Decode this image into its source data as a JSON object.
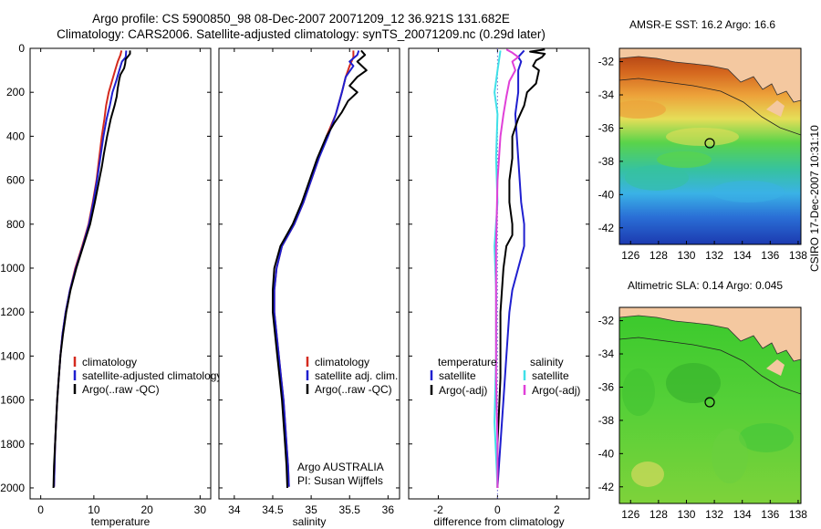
{
  "titles": {
    "line1": "Argo profile: CS 5900850_98 08-Dec-2007 20071209_12 36.921S 131.682E",
    "line2": "Climatology: CARS2006. Satellite-adjusted climatology: synTS_20071209.nc (0.29d later)"
  },
  "colors": {
    "climatology": "#d42a1e",
    "satellite": "#1f1fcf",
    "argo": "#000000",
    "salinity_satellite": "#3fe0e8",
    "salinity_argo": "#e040d8"
  },
  "chart_data": [
    {
      "type": "line",
      "xlabel": "temperature",
      "ylabel": "",
      "xlim": [
        -2,
        32
      ],
      "ylim": [
        2050,
        0
      ],
      "y_reversed": true,
      "xticks": [
        0,
        10,
        20,
        30
      ],
      "yticks": [
        0,
        200,
        400,
        600,
        800,
        1000,
        1200,
        1400,
        1600,
        1800,
        2000
      ],
      "legend": [
        "climatology",
        "satellite-adjusted climatology",
        "Argo(..raw -QC)"
      ],
      "series": [
        {
          "name": "climatology",
          "color": "#d42a1e",
          "points": [
            [
              15.2,
              10
            ],
            [
              15.0,
              30
            ],
            [
              14.5,
              60
            ],
            [
              14.0,
              100
            ],
            [
              13.4,
              150
            ],
            [
              12.8,
              200
            ],
            [
              12.3,
              260
            ],
            [
              12.0,
              320
            ],
            [
              11.5,
              400
            ],
            [
              11.0,
              500
            ],
            [
              10.5,
              600
            ],
            [
              9.8,
              700
            ],
            [
              9.0,
              800
            ],
            [
              7.8,
              900
            ],
            [
              6.5,
              1000
            ],
            [
              5.5,
              1100
            ],
            [
              4.7,
              1200
            ],
            [
              4.1,
              1300
            ],
            [
              3.7,
              1400
            ],
            [
              3.4,
              1500
            ],
            [
              3.1,
              1600
            ],
            [
              2.9,
              1700
            ],
            [
              2.7,
              1800
            ],
            [
              2.6,
              1900
            ],
            [
              2.5,
              1995
            ]
          ]
        },
        {
          "name": "satellite-adjusted climatology",
          "color": "#1f1fcf",
          "points": [
            [
              16.1,
              10
            ],
            [
              16.0,
              40
            ],
            [
              15.3,
              60
            ],
            [
              14.8,
              100
            ],
            [
              14.2,
              150
            ],
            [
              13.5,
              200
            ],
            [
              13.0,
              260
            ],
            [
              12.4,
              320
            ],
            [
              11.8,
              400
            ],
            [
              11.2,
              500
            ],
            [
              10.6,
              600
            ],
            [
              9.9,
              700
            ],
            [
              9.1,
              800
            ],
            [
              7.9,
              900
            ],
            [
              6.6,
              1000
            ],
            [
              5.5,
              1100
            ],
            [
              4.7,
              1200
            ],
            [
              4.1,
              1300
            ],
            [
              3.7,
              1400
            ],
            [
              3.4,
              1500
            ],
            [
              3.1,
              1600
            ],
            [
              2.9,
              1700
            ],
            [
              2.7,
              1800
            ],
            [
              2.6,
              1900
            ],
            [
              2.5,
              1995
            ]
          ]
        },
        {
          "name": "Argo(..raw -QC)",
          "color": "#000000",
          "points": [
            [
              16.8,
              10
            ],
            [
              16.8,
              25
            ],
            [
              16.0,
              50
            ],
            [
              15.9,
              70
            ],
            [
              15.7,
              90
            ],
            [
              15.0,
              120
            ],
            [
              14.8,
              140
            ],
            [
              14.5,
              180
            ],
            [
              14.3,
              220
            ],
            [
              13.9,
              260
            ],
            [
              13.2,
              320
            ],
            [
              12.5,
              400
            ],
            [
              11.9,
              480
            ],
            [
              11.5,
              540
            ],
            [
              11.0,
              600
            ],
            [
              10.2,
              700
            ],
            [
              9.3,
              800
            ],
            [
              8.0,
              900
            ],
            [
              6.7,
              1000
            ],
            [
              5.6,
              1100
            ],
            [
              4.8,
              1200
            ],
            [
              4.2,
              1300
            ],
            [
              3.7,
              1400
            ],
            [
              3.4,
              1500
            ],
            [
              3.1,
              1600
            ],
            [
              2.9,
              1700
            ],
            [
              2.7,
              1800
            ],
            [
              2.5,
              1900
            ],
            [
              2.4,
              2000
            ]
          ]
        }
      ]
    },
    {
      "type": "line",
      "xlabel": "salinity",
      "ylabel": "",
      "xlim": [
        33.8,
        36.15
      ],
      "ylim": [
        2050,
        0
      ],
      "y_reversed": true,
      "xticks": [
        34,
        34.5,
        35,
        35.5,
        36
      ],
      "yticks": [
        0,
        200,
        400,
        600,
        800,
        1000,
        1200,
        1400,
        1600,
        1800,
        2000
      ],
      "legend": [
        "climatology",
        "satellite adj. clim.",
        "Argo(..raw -QC)"
      ],
      "annotation": [
        "Argo AUSTRALIA",
        "PI: Susan Wijffels"
      ],
      "series": [
        {
          "name": "climatology",
          "color": "#d42a1e",
          "points": [
            [
              35.55,
              10
            ],
            [
              35.55,
              40
            ],
            [
              35.5,
              80
            ],
            [
              35.45,
              130
            ],
            [
              35.4,
              200
            ],
            [
              35.32,
              300
            ],
            [
              35.2,
              400
            ],
            [
              35.1,
              500
            ],
            [
              35.0,
              600
            ],
            [
              34.9,
              700
            ],
            [
              34.78,
              800
            ],
            [
              34.62,
              900
            ],
            [
              34.55,
              1000
            ],
            [
              34.52,
              1100
            ],
            [
              34.52,
              1200
            ],
            [
              34.55,
              1300
            ],
            [
              34.58,
              1400
            ],
            [
              34.61,
              1500
            ],
            [
              34.64,
              1600
            ],
            [
              34.66,
              1700
            ],
            [
              34.68,
              1800
            ],
            [
              34.7,
              1900
            ],
            [
              34.71,
              1995
            ]
          ]
        },
        {
          "name": "satellite adj. clim.",
          "color": "#1f1fcf",
          "points": [
            [
              35.62,
              10
            ],
            [
              35.6,
              30
            ],
            [
              35.5,
              60
            ],
            [
              35.55,
              80
            ],
            [
              35.45,
              130
            ],
            [
              35.4,
              200
            ],
            [
              35.32,
              300
            ],
            [
              35.22,
              400
            ],
            [
              35.1,
              500
            ],
            [
              35.0,
              600
            ],
            [
              34.9,
              700
            ],
            [
              34.78,
              800
            ],
            [
              34.62,
              900
            ],
            [
              34.55,
              1000
            ],
            [
              34.52,
              1100
            ],
            [
              34.52,
              1200
            ],
            [
              34.55,
              1300
            ],
            [
              34.58,
              1400
            ],
            [
              34.61,
              1500
            ],
            [
              34.64,
              1600
            ],
            [
              34.66,
              1700
            ],
            [
              34.68,
              1800
            ],
            [
              34.7,
              1900
            ],
            [
              34.71,
              1995
            ]
          ]
        },
        {
          "name": "Argo(..raw -QC)",
          "color": "#000000",
          "points": [
            [
              35.65,
              10
            ],
            [
              35.7,
              30
            ],
            [
              35.6,
              60
            ],
            [
              35.72,
              100
            ],
            [
              35.6,
              130
            ],
            [
              35.5,
              170
            ],
            [
              35.6,
              200
            ],
            [
              35.48,
              240
            ],
            [
              35.4,
              290
            ],
            [
              35.3,
              340
            ],
            [
              35.2,
              400
            ],
            [
              35.08,
              500
            ],
            [
              34.98,
              600
            ],
            [
              34.88,
              700
            ],
            [
              34.76,
              800
            ],
            [
              34.6,
              900
            ],
            [
              34.52,
              1000
            ],
            [
              34.5,
              1100
            ],
            [
              34.5,
              1200
            ],
            [
              34.53,
              1300
            ],
            [
              34.56,
              1400
            ],
            [
              34.59,
              1500
            ],
            [
              34.62,
              1600
            ],
            [
              34.64,
              1700
            ],
            [
              34.66,
              1800
            ],
            [
              34.68,
              1900
            ],
            [
              34.69,
              2000
            ]
          ]
        }
      ]
    },
    {
      "type": "line",
      "xlabel": "difference from climatology",
      "ylabel": "",
      "xlim": [
        -3,
        3.1
      ],
      "ylim": [
        2050,
        0
      ],
      "y_reversed": true,
      "xticks": [
        -2,
        0,
        2
      ],
      "yticks": [
        0,
        200,
        400,
        600,
        800,
        1000,
        1200,
        1400,
        1600,
        1800,
        2000
      ],
      "zero_line": "dotted",
      "legend_headers": [
        "temperature",
        "salinity"
      ],
      "legend": [
        "satellite",
        "Argo(-adj)",
        "satellite",
        "Argo(-adj)"
      ],
      "series": [
        {
          "name": "satellite",
          "group": "temperature",
          "color": "#1f1fcf",
          "points": [
            [
              0.9,
              10
            ],
            [
              0.7,
              40
            ],
            [
              0.8,
              60
            ],
            [
              0.7,
              100
            ],
            [
              0.7,
              200
            ],
            [
              0.6,
              300
            ],
            [
              0.7,
              500
            ],
            [
              0.8,
              700
            ],
            [
              0.9,
              800
            ],
            [
              0.9,
              900
            ],
            [
              0.7,
              1000
            ],
            [
              0.5,
              1100
            ],
            [
              0.4,
              1200
            ],
            [
              0.3,
              1400
            ],
            [
              0.2,
              1600
            ],
            [
              0.1,
              1800
            ],
            [
              0.0,
              1995
            ]
          ]
        },
        {
          "name": "Argo(-adj)",
          "group": "temperature",
          "color": "#000000",
          "points": [
            [
              1.6,
              5
            ],
            [
              1.1,
              15
            ],
            [
              1.6,
              25
            ],
            [
              1.5,
              40
            ],
            [
              1.3,
              55
            ],
            [
              1.2,
              80
            ],
            [
              1.4,
              100
            ],
            [
              1.3,
              160
            ],
            [
              1.0,
              200
            ],
            [
              0.9,
              260
            ],
            [
              0.7,
              320
            ],
            [
              0.5,
              400
            ],
            [
              0.5,
              500
            ],
            [
              0.4,
              600
            ],
            [
              0.4,
              700
            ],
            [
              0.5,
              800
            ],
            [
              0.5,
              850
            ],
            [
              0.3,
              900
            ],
            [
              0.2,
              1000
            ],
            [
              0.1,
              1200
            ],
            [
              0.1,
              1500
            ],
            [
              0.0,
              1800
            ],
            [
              0.0,
              2000
            ]
          ]
        },
        {
          "name": "satellite",
          "group": "salinity",
          "color": "#3fe0e8",
          "points": [
            [
              0.1,
              10
            ],
            [
              0.0,
              100
            ],
            [
              -0.1,
              200
            ],
            [
              0.0,
              300
            ],
            [
              -0.05,
              500
            ],
            [
              0.0,
              700
            ],
            [
              -0.1,
              900
            ],
            [
              -0.05,
              1100
            ],
            [
              -0.05,
              1400
            ],
            [
              -0.1,
              1700
            ],
            [
              0.0,
              1995
            ]
          ]
        },
        {
          "name": "Argo(-adj)",
          "group": "salinity",
          "color": "#e040d8",
          "points": [
            [
              0.3,
              5
            ],
            [
              0.5,
              20
            ],
            [
              0.7,
              40
            ],
            [
              0.5,
              60
            ],
            [
              0.6,
              100
            ],
            [
              0.4,
              150
            ],
            [
              0.3,
              220
            ],
            [
              0.2,
              300
            ],
            [
              0.1,
              400
            ],
            [
              0.0,
              600
            ],
            [
              -0.05,
              900
            ],
            [
              -0.05,
              1200
            ],
            [
              -0.05,
              1500
            ],
            [
              0.0,
              1800
            ],
            [
              0.0,
              2000
            ]
          ]
        }
      ]
    },
    {
      "type": "heatmap",
      "title": "AMSR-E SST: 16.2 Argo: 16.6",
      "xticks": [
        126,
        128,
        130,
        132,
        134,
        136,
        138
      ],
      "yticks": [
        -32,
        -34,
        -36,
        -38,
        -40,
        -42
      ],
      "xlim": [
        125.2,
        138.2
      ],
      "ylim": [
        -43,
        -31.2
      ],
      "marker": [
        131.682,
        -36.921
      ]
    },
    {
      "type": "heatmap",
      "title": "Altimetric SLA: 0.14 Argo: 0.045",
      "xticks": [
        126,
        128,
        130,
        132,
        134,
        136,
        138
      ],
      "yticks": [
        -32,
        -34,
        -36,
        -38,
        -40,
        -42
      ],
      "xlim": [
        125.2,
        138.2
      ],
      "ylim": [
        -43,
        -31.2
      ],
      "marker": [
        131.682,
        -36.921
      ]
    }
  ],
  "stamp": "CSIRO 17-Dec-2007 10:31:10"
}
